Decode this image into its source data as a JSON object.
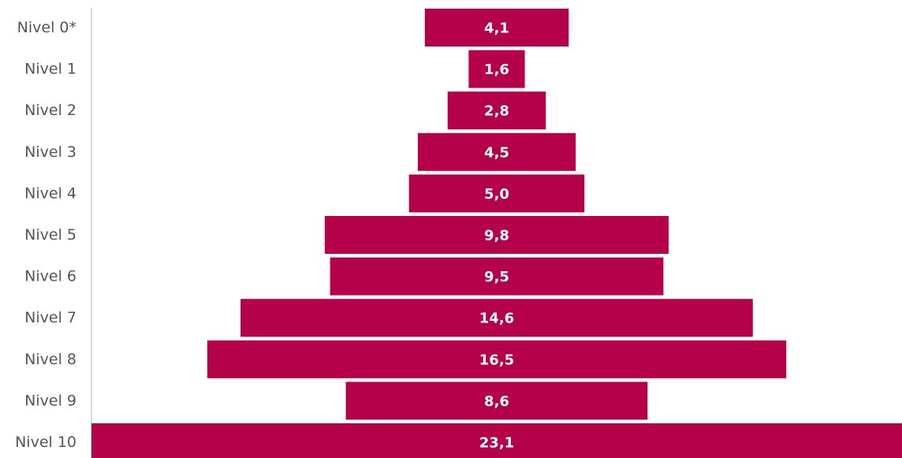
{
  "colors": {
    "bar": "#b5004a",
    "axis": "#d9d9d9",
    "label": "#555555",
    "value_label": "#ffffff"
  },
  "chart_data": {
    "type": "bar",
    "orientation": "horizontal-centered",
    "title": "",
    "xlabel": "",
    "ylabel": "",
    "grid": false,
    "legend": "none",
    "categories": [
      "Nivel 0*",
      "Nivel 1",
      "Nivel 2",
      "Nivel 3",
      "Nivel 4",
      "Nivel 5",
      "Nivel 6",
      "Nivel 7",
      "Nivel 8",
      "Nivel 9",
      "Nivel 10"
    ],
    "values": [
      4.1,
      1.6,
      2.8,
      4.5,
      5.0,
      9.8,
      9.5,
      14.6,
      16.5,
      8.6,
      23.1
    ],
    "value_labels": [
      "4,1",
      "1,6",
      "2,8",
      "4,5",
      "5,0",
      "9,8",
      "9,5",
      "14,6",
      "16,5",
      "8,6",
      "23,1"
    ],
    "xlim": [
      0,
      23.1
    ]
  }
}
